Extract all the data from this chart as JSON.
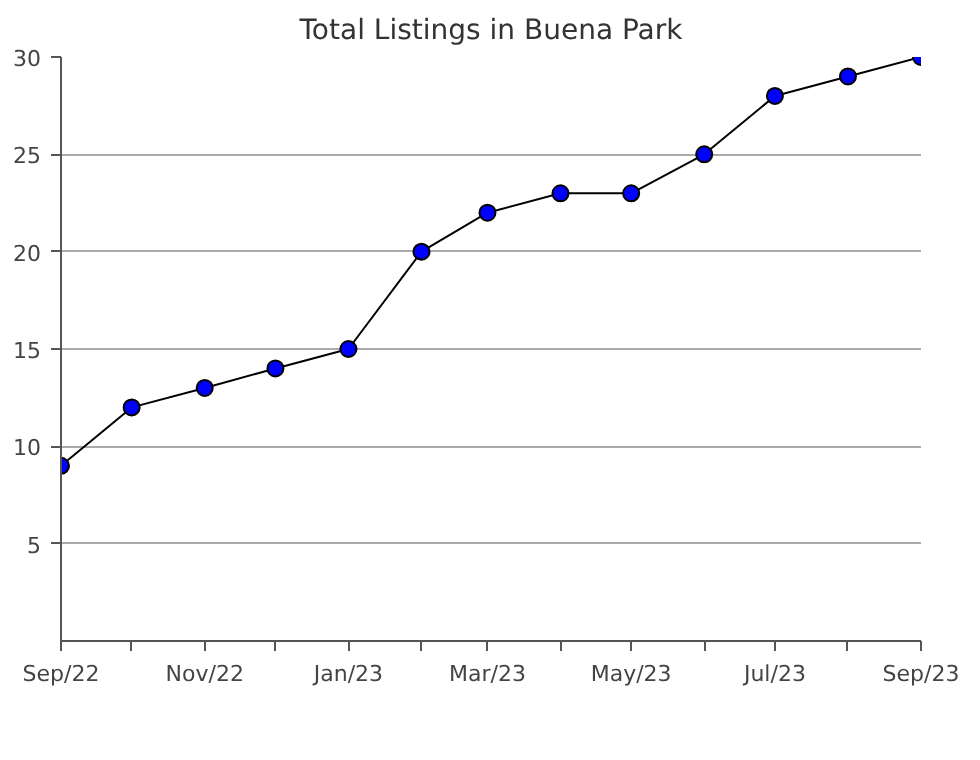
{
  "chart_data": {
    "type": "line",
    "title": "Total Listings in Buena Park",
    "x": [
      "2022-09",
      "2022-10",
      "2022-11",
      "2022-12",
      "2023-01",
      "2023-02",
      "2023-03",
      "2023-04",
      "2023-05",
      "2023-06",
      "2023-07",
      "2023-08",
      "2023-09"
    ],
    "series": [
      {
        "color": "#0000ff",
        "values": [
          9,
          12,
          13,
          14,
          15,
          20,
          22,
          23,
          23,
          25,
          28,
          29,
          30
        ]
      }
    ],
    "xlim": [
      "2022-09",
      "2023-09"
    ],
    "xticks": [
      {
        "value": "2022-09",
        "label": "Sep/22"
      },
      {
        "value": "2022-10",
        "label": null
      },
      {
        "value": "2022-11",
        "label": "Nov/22"
      },
      {
        "value": "2022-12",
        "label": null
      },
      {
        "value": "2023-01",
        "label": "Jan/23"
      },
      {
        "value": "2023-02",
        "label": null
      },
      {
        "value": "2023-03",
        "label": "Mar/23"
      },
      {
        "value": "2023-04",
        "label": null
      },
      {
        "value": "2023-05",
        "label": "May/23"
      },
      {
        "value": "2023-06",
        "label": null
      },
      {
        "value": "2023-07",
        "label": "Jul/23"
      },
      {
        "value": "2023-08",
        "label": null
      },
      {
        "value": "2023-09",
        "label": "Sep/23"
      }
    ],
    "ylim": [
      0,
      30
    ],
    "yticks": [
      5,
      10,
      15,
      20,
      25,
      30
    ],
    "grid": "y",
    "marker": "circle",
    "line_style": "solid"
  }
}
